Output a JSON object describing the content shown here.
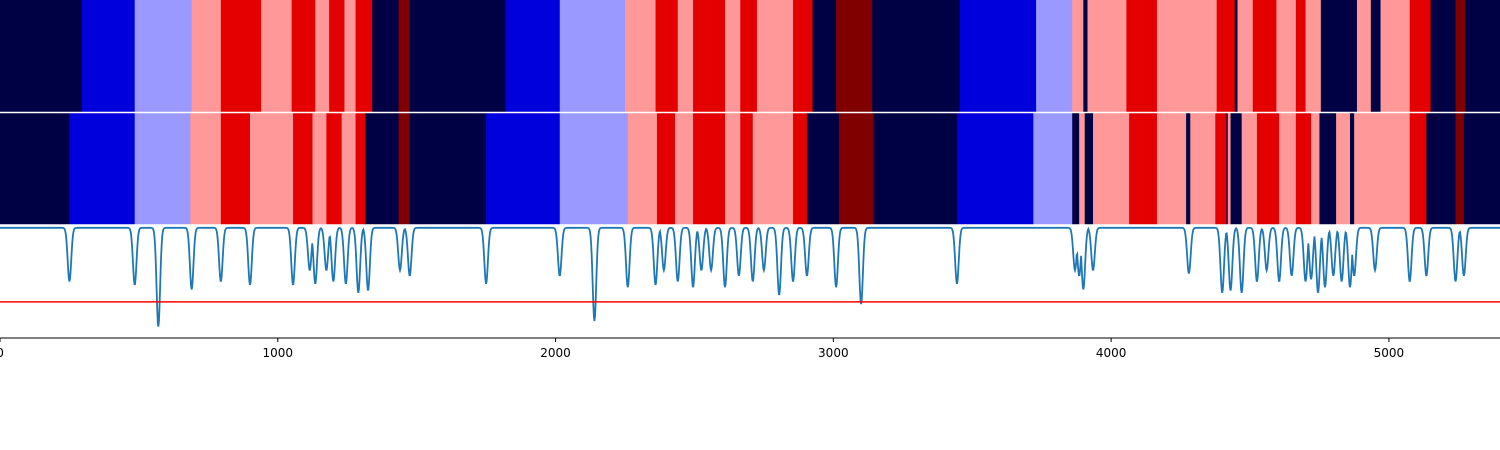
{
  "chart_data": {
    "type": "heatmap",
    "xlim": [
      0,
      5400
    ],
    "x_ticks": [
      "0",
      "1000",
      "2000",
      "3000",
      "4000",
      "5000"
    ],
    "x_tick_values": [
      0,
      1000,
      2000,
      3000,
      4000,
      5000
    ],
    "grid": false,
    "colors": {
      "0": "#000044",
      "1": "#0000dd",
      "2": "#9999ff",
      "3": "#ff9999",
      "4": "#e50000",
      "5": "#800000"
    },
    "rows": [
      {
        "segments": [
          [
            0,
            295,
            0
          ],
          [
            295,
            485,
            1
          ],
          [
            485,
            690,
            2
          ],
          [
            690,
            795,
            3
          ],
          [
            795,
            940,
            4
          ],
          [
            940,
            1050,
            3
          ],
          [
            1050,
            1135,
            4
          ],
          [
            1135,
            1185,
            3
          ],
          [
            1185,
            1240,
            4
          ],
          [
            1240,
            1280,
            3
          ],
          [
            1280,
            1340,
            4
          ],
          [
            1340,
            1435,
            0
          ],
          [
            1435,
            1475,
            5
          ],
          [
            1475,
            1820,
            0
          ],
          [
            1820,
            2015,
            1
          ],
          [
            2015,
            2250,
            2
          ],
          [
            2250,
            2360,
            3
          ],
          [
            2360,
            2440,
            4
          ],
          [
            2440,
            2495,
            3
          ],
          [
            2495,
            2610,
            4
          ],
          [
            2610,
            2665,
            3
          ],
          [
            2665,
            2725,
            4
          ],
          [
            2725,
            2855,
            3
          ],
          [
            2855,
            2925,
            4
          ],
          [
            2925,
            3010,
            0
          ],
          [
            3010,
            3140,
            5
          ],
          [
            3140,
            3455,
            0
          ],
          [
            3455,
            3730,
            1
          ],
          [
            3730,
            3860,
            2
          ],
          [
            3860,
            3900,
            3
          ],
          [
            3900,
            3915,
            0
          ],
          [
            3915,
            4055,
            3
          ],
          [
            4055,
            4165,
            4
          ],
          [
            4165,
            4380,
            3
          ],
          [
            4380,
            4445,
            4
          ],
          [
            4445,
            4455,
            0
          ],
          [
            4455,
            4510,
            3
          ],
          [
            4510,
            4595,
            4
          ],
          [
            4595,
            4665,
            3
          ],
          [
            4665,
            4700,
            4
          ],
          [
            4700,
            4755,
            3
          ],
          [
            4755,
            4885,
            0
          ],
          [
            4885,
            4935,
            3
          ],
          [
            4935,
            4970,
            0
          ],
          [
            4970,
            5075,
            3
          ],
          [
            5075,
            5150,
            4
          ],
          [
            5150,
            5240,
            0
          ],
          [
            5240,
            5275,
            5
          ],
          [
            5275,
            5400,
            0
          ]
        ]
      },
      {
        "segments": [
          [
            0,
            250,
            0
          ],
          [
            250,
            485,
            1
          ],
          [
            485,
            685,
            2
          ],
          [
            685,
            795,
            3
          ],
          [
            795,
            900,
            4
          ],
          [
            900,
            1055,
            3
          ],
          [
            1055,
            1125,
            4
          ],
          [
            1125,
            1175,
            3
          ],
          [
            1175,
            1230,
            4
          ],
          [
            1230,
            1280,
            3
          ],
          [
            1280,
            1315,
            4
          ],
          [
            1315,
            1435,
            0
          ],
          [
            1435,
            1475,
            5
          ],
          [
            1475,
            1750,
            0
          ],
          [
            1750,
            2015,
            1
          ],
          [
            2015,
            2260,
            2
          ],
          [
            2260,
            2365,
            3
          ],
          [
            2365,
            2430,
            4
          ],
          [
            2430,
            2495,
            3
          ],
          [
            2495,
            2610,
            4
          ],
          [
            2610,
            2665,
            3
          ],
          [
            2665,
            2710,
            4
          ],
          [
            2710,
            2855,
            3
          ],
          [
            2855,
            2905,
            4
          ],
          [
            2905,
            3020,
            0
          ],
          [
            3020,
            3145,
            5
          ],
          [
            3145,
            3445,
            0
          ],
          [
            3445,
            3720,
            1
          ],
          [
            3720,
            3860,
            2
          ],
          [
            3860,
            3885,
            0
          ],
          [
            3885,
            3905,
            3
          ],
          [
            3905,
            3935,
            0
          ],
          [
            3935,
            4065,
            3
          ],
          [
            4065,
            4165,
            4
          ],
          [
            4165,
            4270,
            3
          ],
          [
            4270,
            4285,
            0
          ],
          [
            4285,
            4375,
            3
          ],
          [
            4375,
            4415,
            4
          ],
          [
            4415,
            4420,
            0
          ],
          [
            4420,
            4430,
            3
          ],
          [
            4430,
            4470,
            0
          ],
          [
            4470,
            4525,
            3
          ],
          [
            4525,
            4605,
            4
          ],
          [
            4605,
            4665,
            3
          ],
          [
            4665,
            4720,
            4
          ],
          [
            4720,
            4750,
            3
          ],
          [
            4750,
            4810,
            0
          ],
          [
            4810,
            4860,
            3
          ],
          [
            4860,
            4875,
            0
          ],
          [
            4875,
            5075,
            3
          ],
          [
            5075,
            5135,
            4
          ],
          [
            5135,
            5240,
            0
          ],
          [
            5240,
            5270,
            5
          ],
          [
            5270,
            5400,
            0
          ]
        ]
      }
    ],
    "line": {
      "color": "#1f77b4",
      "ylim": [
        0,
        1
      ],
      "baseline": 0.975,
      "dips": [
        [
          250,
          0.5
        ],
        [
          485,
          0.47
        ],
        [
          570,
          0.1
        ],
        [
          690,
          0.43
        ],
        [
          795,
          0.5
        ],
        [
          900,
          0.47
        ],
        [
          1055,
          0.47
        ],
        [
          1115,
          0.6
        ],
        [
          1135,
          0.48
        ],
        [
          1175,
          0.6
        ],
        [
          1200,
          0.5
        ],
        [
          1245,
          0.48
        ],
        [
          1290,
          0.4
        ],
        [
          1325,
          0.42
        ],
        [
          1440,
          0.6
        ],
        [
          1475,
          0.55
        ],
        [
          1750,
          0.48
        ],
        [
          2015,
          0.55
        ],
        [
          2140,
          0.15
        ],
        [
          2260,
          0.45
        ],
        [
          2360,
          0.47
        ],
        [
          2390,
          0.6
        ],
        [
          2440,
          0.5
        ],
        [
          2495,
          0.45
        ],
        [
          2525,
          0.6
        ],
        [
          2560,
          0.6
        ],
        [
          2610,
          0.45
        ],
        [
          2660,
          0.55
        ],
        [
          2710,
          0.5
        ],
        [
          2750,
          0.6
        ],
        [
          2805,
          0.38
        ],
        [
          2855,
          0.5
        ],
        [
          2905,
          0.55
        ],
        [
          3010,
          0.45
        ],
        [
          3100,
          0.3
        ],
        [
          3445,
          0.48
        ],
        [
          3870,
          0.6
        ],
        [
          3885,
          0.55
        ],
        [
          3900,
          0.43
        ],
        [
          3935,
          0.6
        ],
        [
          4280,
          0.57
        ],
        [
          4400,
          0.4
        ],
        [
          4430,
          0.42
        ],
        [
          4470,
          0.4
        ],
        [
          4525,
          0.5
        ],
        [
          4560,
          0.6
        ],
        [
          4605,
          0.5
        ],
        [
          4650,
          0.55
        ],
        [
          4700,
          0.5
        ],
        [
          4720,
          0.52
        ],
        [
          4745,
          0.4
        ],
        [
          4770,
          0.45
        ],
        [
          4800,
          0.55
        ],
        [
          4830,
          0.5
        ],
        [
          4860,
          0.45
        ],
        [
          4875,
          0.55
        ],
        [
          4950,
          0.6
        ],
        [
          5075,
          0.5
        ],
        [
          5135,
          0.55
        ],
        [
          5240,
          0.5
        ],
        [
          5270,
          0.55
        ]
      ]
    },
    "threshold": {
      "value": 0.32,
      "color": "#ff0000"
    }
  }
}
